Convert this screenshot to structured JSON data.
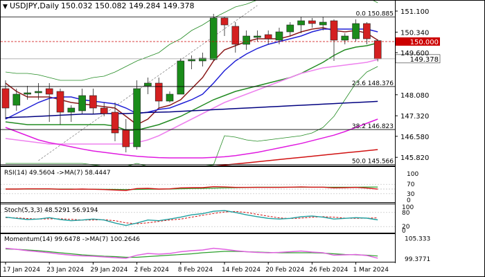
{
  "header": {
    "symbol": "USDJPY,Daily",
    "ohlc": "150.032 150.082 149.284 149.378"
  },
  "chart_data": {
    "type": "candlestick",
    "title": "USDJPY,Daily",
    "price_axis": {
      "ticks": [
        "151.100",
        "150.340",
        "149.600",
        "148.080",
        "147.320",
        "146.580",
        "145.820"
      ],
      "ylim": [
        145.6,
        151.35
      ]
    },
    "date_labels": [
      "17 Jan 2024",
      "23 Jan 2024",
      "29 Jan 2024",
      "2 Feb 2024",
      "8 Feb 2024",
      "14 Feb 2024",
      "20 Feb 2024",
      "26 Feb 2024",
      "1 Mar 2024"
    ],
    "candles": [
      {
        "o": 148.3,
        "h": 148.6,
        "l": 147.2,
        "c": 147.6
      },
      {
        "o": 147.7,
        "h": 148.3,
        "l": 147.5,
        "c": 148.1
      },
      {
        "o": 148.1,
        "h": 148.4,
        "l": 147.9,
        "c": 148.15
      },
      {
        "o": 148.15,
        "h": 148.5,
        "l": 147.9,
        "c": 148.2
      },
      {
        "o": 148.3,
        "h": 148.5,
        "l": 147.1,
        "c": 148.1
      },
      {
        "o": 148.2,
        "h": 148.3,
        "l": 147.0,
        "c": 147.45
      },
      {
        "o": 147.45,
        "h": 147.7,
        "l": 147.1,
        "c": 147.6
      },
      {
        "o": 147.5,
        "h": 148.3,
        "l": 147.4,
        "c": 148.05
      },
      {
        "o": 148.05,
        "h": 148.3,
        "l": 147.4,
        "c": 147.6
      },
      {
        "o": 147.6,
        "h": 147.8,
        "l": 147.3,
        "c": 147.4
      },
      {
        "o": 147.45,
        "h": 147.8,
        "l": 146.4,
        "c": 146.7
      },
      {
        "o": 146.8,
        "h": 147.2,
        "l": 146.0,
        "c": 146.2
      },
      {
        "o": 146.2,
        "h": 148.6,
        "l": 146.1,
        "c": 148.3
      },
      {
        "o": 148.4,
        "h": 148.7,
        "l": 148.1,
        "c": 148.5
      },
      {
        "o": 148.5,
        "h": 148.7,
        "l": 147.6,
        "c": 147.85
      },
      {
        "o": 147.85,
        "h": 148.2,
        "l": 147.8,
        "c": 148.1
      },
      {
        "o": 148.1,
        "h": 149.4,
        "l": 148.1,
        "c": 149.3
      },
      {
        "o": 149.3,
        "h": 149.5,
        "l": 149.0,
        "c": 149.35
      },
      {
        "o": 149.3,
        "h": 149.6,
        "l": 149.1,
        "c": 149.4
      },
      {
        "o": 149.35,
        "h": 151.0,
        "l": 149.3,
        "c": 150.85
      },
      {
        "o": 150.85,
        "h": 150.9,
        "l": 150.2,
        "c": 150.6
      },
      {
        "o": 150.55,
        "h": 150.7,
        "l": 149.6,
        "c": 149.9
      },
      {
        "o": 149.9,
        "h": 150.4,
        "l": 149.7,
        "c": 150.2
      },
      {
        "o": 150.15,
        "h": 150.4,
        "l": 150.0,
        "c": 150.2
      },
      {
        "o": 150.25,
        "h": 150.4,
        "l": 149.9,
        "c": 150.1
      },
      {
        "o": 150.05,
        "h": 150.5,
        "l": 149.9,
        "c": 150.35
      },
      {
        "o": 150.35,
        "h": 150.7,
        "l": 150.2,
        "c": 150.6
      },
      {
        "o": 150.6,
        "h": 150.9,
        "l": 150.3,
        "c": 150.75
      },
      {
        "o": 150.75,
        "h": 150.85,
        "l": 150.5,
        "c": 150.65
      },
      {
        "o": 150.6,
        "h": 150.9,
        "l": 150.4,
        "c": 150.7
      },
      {
        "o": 150.75,
        "h": 150.8,
        "l": 149.3,
        "c": 150.05
      },
      {
        "o": 150.05,
        "h": 150.3,
        "l": 149.9,
        "c": 150.2
      },
      {
        "o": 150.1,
        "h": 150.8,
        "l": 150.0,
        "c": 150.65
      },
      {
        "o": 150.65,
        "h": 150.7,
        "l": 149.9,
        "c": 150.1
      },
      {
        "o": 150.032,
        "h": 150.082,
        "l": 149.284,
        "c": 149.378
      }
    ],
    "moving_averages": [
      {
        "name": "MA-dark-red",
        "color": "#8b1a1a",
        "values": [
          148.5,
          148.2,
          148.0,
          148.0,
          148.0,
          147.9,
          147.8,
          147.75,
          147.7,
          147.65,
          147.6,
          147.3,
          147.0,
          147.2,
          147.6,
          147.7,
          147.9,
          148.3,
          148.7,
          149.3,
          149.7,
          149.85,
          150.0,
          150.1,
          150.1,
          150.1,
          150.2,
          150.35,
          150.45,
          150.5,
          150.4,
          150.35,
          150.4,
          150.3,
          150.05
        ]
      },
      {
        "name": "MA-blue",
        "color": "#1f1fd6",
        "values": [
          147.2,
          147.4,
          147.6,
          147.8,
          147.95,
          148.0,
          148.0,
          147.9,
          147.85,
          147.8,
          147.75,
          147.6,
          147.4,
          147.45,
          147.55,
          147.6,
          147.75,
          147.9,
          148.1,
          148.5,
          148.95,
          149.3,
          149.55,
          149.75,
          149.9,
          150.0,
          150.1,
          150.2,
          150.35,
          150.45,
          150.45,
          150.45,
          150.45,
          150.45,
          150.35
        ]
      },
      {
        "name": "MA-green",
        "color": "#228b22",
        "values": [
          147.1,
          147.05,
          147.0,
          147.0,
          147.0,
          147.0,
          147.0,
          147.0,
          147.0,
          147.0,
          146.95,
          146.8,
          146.8,
          146.9,
          147.0,
          147.15,
          147.3,
          147.5,
          147.7,
          147.9,
          148.05,
          148.2,
          148.3,
          148.4,
          148.5,
          148.6,
          148.7,
          148.85,
          149.05,
          149.25,
          149.5,
          149.7,
          149.8,
          149.85,
          149.95
        ]
      },
      {
        "name": "MA-violet",
        "color": "#ee82ee",
        "values": [
          146.5,
          146.45,
          146.4,
          146.35,
          146.3,
          146.3,
          146.3,
          146.3,
          146.3,
          146.3,
          146.3,
          146.3,
          146.35,
          146.45,
          146.6,
          146.8,
          147.0,
          147.2,
          147.4,
          147.6,
          147.8,
          147.95,
          148.1,
          148.25,
          148.4,
          148.55,
          148.7,
          148.85,
          148.95,
          149.05,
          149.1,
          149.15,
          149.2,
          149.25,
          149.35
        ]
      },
      {
        "name": "MA-navy",
        "color": "#000080",
        "values": [
          147.25,
          147.27,
          147.28,
          147.3,
          147.32,
          147.34,
          147.36,
          147.38,
          147.38,
          147.4,
          147.4,
          147.4,
          147.42,
          147.44,
          147.45,
          147.46,
          147.48,
          147.5,
          147.52,
          147.54,
          147.56,
          147.58,
          147.6,
          147.62,
          147.64,
          147.66,
          147.68,
          147.7,
          147.72,
          147.74,
          147.76,
          147.78,
          147.8,
          147.82,
          147.84
        ]
      },
      {
        "name": "MA-magenta",
        "color": "#e01ae0",
        "values": [
          146.9,
          146.75,
          146.6,
          146.45,
          146.35,
          146.28,
          146.2,
          146.12,
          146.05,
          146.0,
          145.95,
          145.9,
          145.86,
          145.83,
          145.81,
          145.8,
          145.8,
          145.8,
          145.8,
          145.82,
          145.84,
          145.88,
          145.94,
          146.0,
          146.08,
          146.16,
          146.24,
          146.32,
          146.42,
          146.52,
          146.62,
          146.75,
          146.9,
          147.05,
          147.2
        ]
      },
      {
        "name": "MA-red",
        "color": "#d01010",
        "values": [
          145.1,
          145.12,
          145.14,
          145.16,
          145.18,
          145.2,
          145.22,
          145.24,
          145.26,
          145.28,
          145.3,
          145.32,
          145.34,
          145.36,
          145.38,
          145.4,
          145.42,
          145.44,
          145.46,
          145.5,
          145.54,
          145.58,
          145.62,
          145.66,
          145.7,
          145.74,
          145.78,
          145.82,
          145.86,
          145.9,
          145.94,
          145.98,
          146.02,
          146.06,
          146.1
        ]
      }
    ],
    "bollinger": {
      "upper": [
        148.9,
        148.85,
        148.85,
        148.8,
        148.7,
        148.6,
        148.6,
        148.6,
        148.7,
        148.75,
        148.9,
        149.1,
        149.3,
        149.45,
        149.6,
        149.9,
        150.1,
        150.4,
        150.6,
        150.85,
        151.05,
        151.25,
        151.35,
        151.5,
        151.6,
        151.7,
        151.75,
        151.8,
        151.85,
        151.85,
        151.8,
        151.75,
        151.7,
        151.6,
        151.4
      ],
      "lower": [
        145.6,
        145.6,
        145.6,
        145.6,
        145.6,
        145.6,
        145.6,
        145.6,
        145.55,
        145.5,
        145.45,
        145.5,
        145.6,
        145.5,
        145.45,
        145.4,
        145.4,
        145.45,
        145.5,
        145.55,
        146.6,
        146.55,
        146.45,
        146.4,
        146.45,
        146.5,
        146.55,
        146.6,
        146.7,
        146.9,
        147.3,
        147.9,
        148.5,
        148.9,
        149.1
      ],
      "color": "#228b22"
    },
    "horizontal_levels": [
      {
        "label": "0.0 150.885",
        "value": 150.885
      },
      {
        "label": "",
        "value": 150.0,
        "color": "#cc0000",
        "dashed": true,
        "tag": "150.000"
      },
      {
        "label": "",
        "value": 149.378,
        "color": "#999999",
        "tag": "149.378"
      },
      {
        "label": "23.6 148.376",
        "value": 148.376
      },
      {
        "label": "38.2 146.823",
        "value": 146.823
      },
      {
        "label": "50.0 145.566",
        "value": 145.566
      }
    ],
    "rsi": {
      "label": "RSI(14) 49.5604 ->MA(7) 58.4447",
      "levels": [
        70,
        30
      ],
      "tick_labels": [
        "100",
        "70",
        "30",
        "0"
      ],
      "rsi": [
        50,
        50,
        51,
        51,
        51,
        49,
        49,
        50,
        49,
        48,
        46,
        44,
        52,
        53,
        50,
        51,
        55,
        56,
        56,
        60,
        59,
        57,
        57,
        57,
        57,
        57,
        58,
        59,
        58,
        58,
        55,
        56,
        57,
        54,
        49.5604
      ],
      "ma": [
        50,
        50,
        50,
        50,
        50,
        50,
        50,
        49.5,
        49.5,
        49,
        48.5,
        48,
        48.5,
        49,
        49.5,
        50,
        51,
        52,
        53,
        54,
        55,
        56,
        57,
        57.5,
        58,
        58,
        58,
        58,
        58,
        58,
        58,
        58,
        58,
        58.5,
        58.4447
      ]
    },
    "stoch": {
      "label": "Stoch(5,3,3) 48.5291 56.9194",
      "tick_labels": [
        "100",
        "80",
        "20",
        "0"
      ],
      "k": [
        60,
        55,
        50,
        52,
        58,
        50,
        45,
        48,
        52,
        48,
        35,
        25,
        35,
        48,
        45,
        52,
        60,
        70,
        75,
        85,
        88,
        80,
        70,
        62,
        55,
        52,
        55,
        62,
        65,
        60,
        52,
        55,
        58,
        56,
        48.5291
      ],
      "d": [
        58,
        57,
        54,
        52,
        53,
        53,
        51,
        48,
        48,
        49,
        45,
        36,
        32,
        36,
        42,
        48,
        52,
        60,
        68,
        76,
        82,
        84,
        80,
        72,
        64,
        57,
        54,
        56,
        60,
        62,
        60,
        56,
        55,
        56,
        56.9194
      ]
    },
    "momentum": {
      "label": "Momentum(14) 99.6478 ->MA(7) 100.2646",
      "tick_labels": [
        "105.333",
        "99.3771"
      ],
      "mom": [
        102.5,
        102.2,
        101.8,
        101.5,
        101.2,
        100.8,
        100.5,
        100.3,
        100.2,
        100.0,
        99.8,
        99.6,
        100.5,
        101.0,
        100.8,
        101.0,
        101.5,
        101.8,
        102.0,
        102.5,
        102.2,
        101.8,
        101.5,
        101.3,
        101.2,
        101.3,
        101.5,
        101.7,
        101.4,
        101.2,
        100.5,
        100.6,
        100.7,
        100.4,
        99.6478
      ],
      "ma": [
        102.3,
        102.2,
        102.0,
        101.8,
        101.5,
        101.2,
        100.9,
        100.6,
        100.4,
        100.2,
        100.1,
        99.9,
        99.9,
        100.1,
        100.3,
        100.5,
        100.7,
        100.9,
        101.2,
        101.4,
        101.6,
        101.6,
        101.5,
        101.4,
        101.3,
        101.2,
        101.2,
        101.2,
        101.2,
        101.1,
        100.9,
        100.7,
        100.6,
        100.5,
        100.2646
      ]
    }
  }
}
